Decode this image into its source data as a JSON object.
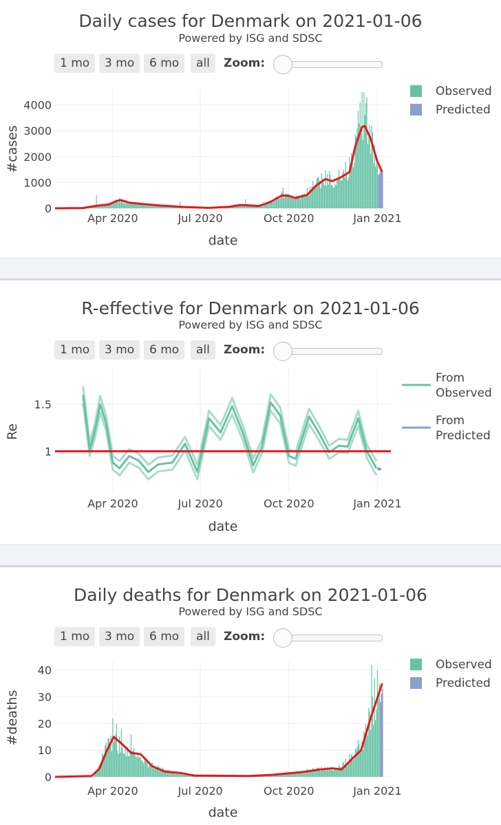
{
  "panels": [
    {
      "title": "Daily cases for Denmark on 2021-01-06",
      "subtitle": "Powered by ISG and SDSC",
      "buttons": [
        "1 mo",
        "3 mo",
        "6 mo",
        "all"
      ],
      "zoom_label": "Zoom:"
    },
    {
      "title": "R-effective for Denmark on 2021-01-06",
      "subtitle": "Powered by ISG and SDSC",
      "buttons": [
        "1 mo",
        "3 mo",
        "6 mo",
        "all"
      ],
      "zoom_label": "Zoom:"
    },
    {
      "title": "Daily deaths for Denmark on 2021-01-06",
      "subtitle": "Powered by ISG and SDSC",
      "buttons": [
        "1 mo",
        "3 mo",
        "6 mo",
        "all"
      ],
      "zoom_label": "Zoom:"
    }
  ],
  "colors": {
    "observed": "#66c2a5",
    "predicted": "#8da0cb",
    "trend": "#e31a1c",
    "band": "#a8dcc9",
    "grid": "#eeeeee"
  },
  "chart_data": [
    {
      "type": "bar",
      "title": "Daily cases for Denmark on 2021-01-06",
      "xlabel": "date",
      "ylabel": "#cases",
      "xlim": [
        "2020-02-01",
        "2021-01-15"
      ],
      "ylim": [
        0,
        4600
      ],
      "yticks": [
        0,
        1000,
        2000,
        3000,
        4000
      ],
      "xticks": [
        {
          "date": "2020-04-01",
          "label": "Apr 2020"
        },
        {
          "date": "2020-07-01",
          "label": "Jul 2020"
        },
        {
          "date": "2020-10-01",
          "label": "Oct 2020"
        },
        {
          "date": "2021-01-01",
          "label": "Jan 2021"
        }
      ],
      "legend": [
        "Observed",
        "Predicted"
      ],
      "observed_anchors": [
        [
          "2020-02-01",
          0
        ],
        [
          "2020-02-27",
          2
        ],
        [
          "2020-03-08",
          40
        ],
        [
          "2020-03-14",
          120
        ],
        [
          "2020-03-22",
          90
        ],
        [
          "2020-04-01",
          210
        ],
        [
          "2020-04-07",
          320
        ],
        [
          "2020-04-13",
          250
        ],
        [
          "2020-04-25",
          180
        ],
        [
          "2020-05-10",
          120
        ],
        [
          "2020-05-31",
          60
        ],
        [
          "2020-06-20",
          30
        ],
        [
          "2020-07-10",
          15
        ],
        [
          "2020-07-31",
          60
        ],
        [
          "2020-08-10",
          120
        ],
        [
          "2020-08-17",
          140
        ],
        [
          "2020-08-28",
          100
        ],
        [
          "2020-09-03",
          110
        ],
        [
          "2020-09-12",
          250
        ],
        [
          "2020-09-24",
          520
        ],
        [
          "2020-10-01",
          430
        ],
        [
          "2020-10-10",
          420
        ],
        [
          "2020-10-20",
          600
        ],
        [
          "2020-10-30",
          1000
        ],
        [
          "2020-11-08",
          1150
        ],
        [
          "2020-11-17",
          1000
        ],
        [
          "2020-11-25",
          1250
        ],
        [
          "2020-12-03",
          1600
        ],
        [
          "2020-12-08",
          2400
        ],
        [
          "2020-12-13",
          3200
        ],
        [
          "2020-12-18",
          3900
        ],
        [
          "2020-12-22",
          3100
        ],
        [
          "2020-12-27",
          2300
        ],
        [
          "2021-01-03",
          1500
        ],
        [
          "2021-01-06",
          1400
        ]
      ],
      "observed_spikes": [
        [
          "2020-03-15",
          500
        ],
        [
          "2020-06-10",
          250
        ],
        [
          "2020-08-17",
          350
        ],
        [
          "2020-09-25",
          800
        ],
        [
          "2020-11-12",
          1450
        ],
        [
          "2020-11-26",
          1400
        ],
        [
          "2020-12-14",
          4100
        ],
        [
          "2020-12-16",
          4500
        ],
        [
          "2020-12-19",
          3600
        ],
        [
          "2020-12-21",
          4300
        ],
        [
          "2020-12-23",
          2900
        ]
      ],
      "predicted_bars": [
        [
          "2021-01-02",
          1300
        ],
        [
          "2021-01-03",
          1350
        ],
        [
          "2021-01-04",
          1420
        ],
        [
          "2021-01-05",
          1400
        ],
        [
          "2021-01-06",
          1390
        ]
      ],
      "trend": [
        [
          "2020-02-01",
          0
        ],
        [
          "2020-03-01",
          10
        ],
        [
          "2020-03-10",
          70
        ],
        [
          "2020-03-18",
          110
        ],
        [
          "2020-03-28",
          150
        ],
        [
          "2020-04-04",
          270
        ],
        [
          "2020-04-09",
          320
        ],
        [
          "2020-04-18",
          220
        ],
        [
          "2020-05-01",
          170
        ],
        [
          "2020-05-20",
          110
        ],
        [
          "2020-06-15",
          50
        ],
        [
          "2020-07-10",
          15
        ],
        [
          "2020-07-31",
          60
        ],
        [
          "2020-08-12",
          130
        ],
        [
          "2020-08-22",
          110
        ],
        [
          "2020-08-31",
          90
        ],
        [
          "2020-09-12",
          250
        ],
        [
          "2020-09-24",
          500
        ],
        [
          "2020-10-01",
          480
        ],
        [
          "2020-10-08",
          400
        ],
        [
          "2020-10-20",
          520
        ],
        [
          "2020-10-30",
          900
        ],
        [
          "2020-11-08",
          1130
        ],
        [
          "2020-11-15",
          1050
        ],
        [
          "2020-11-24",
          1200
        ],
        [
          "2020-12-03",
          1400
        ],
        [
          "2020-12-09",
          2400
        ],
        [
          "2020-12-16",
          3150
        ],
        [
          "2020-12-19",
          3180
        ],
        [
          "2020-12-25",
          2700
        ],
        [
          "2021-01-01",
          1800
        ],
        [
          "2021-01-06",
          1400
        ]
      ]
    },
    {
      "type": "line",
      "title": "R-effective for Denmark on 2021-01-06",
      "xlabel": "date",
      "ylabel": "Re",
      "xlim": [
        "2020-02-01",
        "2021-01-15"
      ],
      "ylim": [
        0.55,
        1.88
      ],
      "yticks": [
        1,
        1.5
      ],
      "xticks": [
        {
          "date": "2020-04-01",
          "label": "Apr 2020"
        },
        {
          "date": "2020-07-01",
          "label": "Jul 2020"
        },
        {
          "date": "2020-10-01",
          "label": "Oct 2020"
        },
        {
          "date": "2021-01-01",
          "label": "Jan 2021"
        }
      ],
      "legend": [
        "From Observed",
        "From Predicted"
      ],
      "reference": 1,
      "observed": [
        [
          "2020-03-01",
          1.6
        ],
        [
          "2020-03-03",
          1.45
        ],
        [
          "2020-03-08",
          1.02
        ],
        [
          "2020-03-13",
          1.2
        ],
        [
          "2020-03-19",
          1.5
        ],
        [
          "2020-03-25",
          1.3
        ],
        [
          "2020-04-01",
          0.88
        ],
        [
          "2020-04-08",
          0.82
        ],
        [
          "2020-04-18",
          0.95
        ],
        [
          "2020-04-28",
          0.9
        ],
        [
          "2020-05-08",
          0.78
        ],
        [
          "2020-05-18",
          0.86
        ],
        [
          "2020-06-02",
          0.88
        ],
        [
          "2020-06-15",
          1.08
        ],
        [
          "2020-06-28",
          0.78
        ],
        [
          "2020-07-10",
          1.35
        ],
        [
          "2020-07-22",
          1.2
        ],
        [
          "2020-08-03",
          1.48
        ],
        [
          "2020-08-14",
          1.2
        ],
        [
          "2020-08-25",
          0.85
        ],
        [
          "2020-09-03",
          1.05
        ],
        [
          "2020-09-12",
          1.52
        ],
        [
          "2020-09-22",
          1.38
        ],
        [
          "2020-10-01",
          0.95
        ],
        [
          "2020-10-08",
          0.92
        ],
        [
          "2020-10-22",
          1.37
        ],
        [
          "2020-11-01",
          1.2
        ],
        [
          "2020-11-12",
          0.99
        ],
        [
          "2020-11-22",
          1.06
        ],
        [
          "2020-12-01",
          1.05
        ],
        [
          "2020-12-12",
          1.35
        ],
        [
          "2020-12-21",
          1.0
        ],
        [
          "2020-12-31",
          0.82
        ]
      ],
      "band": 0.07,
      "predicted": [
        [
          "2021-01-01",
          0.82
        ],
        [
          "2021-01-03",
          0.81
        ],
        [
          "2021-01-05",
          0.81
        ]
      ]
    },
    {
      "type": "bar",
      "title": "Daily deaths for Denmark on 2021-01-06",
      "xlabel": "date",
      "ylabel": "#deaths",
      "xlim": [
        "2020-02-01",
        "2021-01-15"
      ],
      "ylim": [
        0,
        43
      ],
      "yticks": [
        0,
        10,
        20,
        30,
        40
      ],
      "xticks": [
        {
          "date": "2020-04-01",
          "label": "Apr 2020"
        },
        {
          "date": "2020-07-01",
          "label": "Jul 2020"
        },
        {
          "date": "2020-10-01",
          "label": "Oct 2020"
        },
        {
          "date": "2021-01-01",
          "label": "Jan 2021"
        }
      ],
      "legend": [
        "Observed",
        "Predicted"
      ],
      "observed_anchors": [
        [
          "2020-02-01",
          0
        ],
        [
          "2020-03-12",
          0
        ],
        [
          "2020-03-16",
          2
        ],
        [
          "2020-03-22",
          8
        ],
        [
          "2020-03-30",
          13
        ],
        [
          "2020-04-08",
          12
        ],
        [
          "2020-04-18",
          10
        ],
        [
          "2020-04-28",
          8
        ],
        [
          "2020-05-08",
          5
        ],
        [
          "2020-05-20",
          3
        ],
        [
          "2020-06-05",
          1.5
        ],
        [
          "2020-06-25",
          0.7
        ],
        [
          "2020-08-15",
          0.4
        ],
        [
          "2020-09-15",
          0.8
        ],
        [
          "2020-10-15",
          2
        ],
        [
          "2020-11-01",
          3
        ],
        [
          "2020-11-20",
          3
        ],
        [
          "2020-12-01",
          6
        ],
        [
          "2020-12-10",
          10
        ],
        [
          "2020-12-18",
          15
        ],
        [
          "2020-12-25",
          22
        ],
        [
          "2021-01-02",
          28
        ],
        [
          "2021-01-06",
          32
        ]
      ],
      "observed_spikes": [
        [
          "2020-04-01",
          22
        ],
        [
          "2020-04-05",
          20
        ],
        [
          "2020-04-10",
          18
        ],
        [
          "2020-04-20",
          16
        ],
        [
          "2020-12-26",
          42
        ],
        [
          "2020-12-29",
          37
        ],
        [
          "2021-01-01",
          40
        ]
      ],
      "predicted_bars": [
        [
          "2021-01-04",
          28
        ],
        [
          "2021-01-05",
          31
        ],
        [
          "2021-01-06",
          33
        ]
      ],
      "trend": [
        [
          "2020-02-01",
          0
        ],
        [
          "2020-03-10",
          0.3
        ],
        [
          "2020-03-18",
          3
        ],
        [
          "2020-03-26",
          10
        ],
        [
          "2020-04-02",
          15
        ],
        [
          "2020-04-10",
          12.5
        ],
        [
          "2020-04-20",
          9
        ],
        [
          "2020-04-30",
          8.5
        ],
        [
          "2020-05-12",
          4
        ],
        [
          "2020-05-25",
          2
        ],
        [
          "2020-06-10",
          1.5
        ],
        [
          "2020-06-25",
          0.5
        ],
        [
          "2020-08-20",
          0.3
        ],
        [
          "2020-09-15",
          0.8
        ],
        [
          "2020-10-15",
          1.8
        ],
        [
          "2020-11-01",
          2.7
        ],
        [
          "2020-11-15",
          3.2
        ],
        [
          "2020-11-25",
          2.8
        ],
        [
          "2020-12-05",
          6.5
        ],
        [
          "2020-12-15",
          10
        ],
        [
          "2020-12-25",
          22
        ],
        [
          "2021-01-06",
          35
        ]
      ]
    }
  ]
}
